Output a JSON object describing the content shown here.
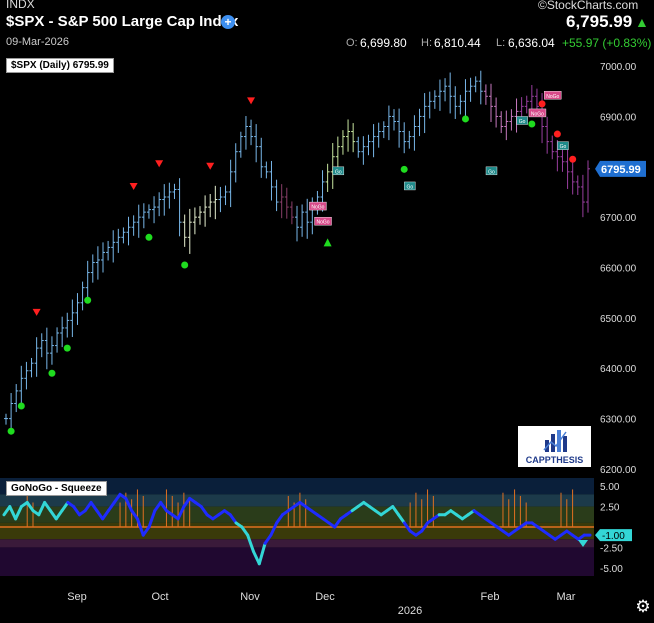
{
  "header": {
    "exchange": "INDX",
    "title": "$SPX - S&P 500 Large Cap Index",
    "date": "09-Mar-2026",
    "brand": "©StockCharts.com",
    "last_price": "6,795.99",
    "ohlc": {
      "open_label": "O:",
      "open": "6,699.80",
      "high_label": "H:",
      "high": "6,810.44",
      "low_label": "L:",
      "low": "6,636.04",
      "change": "+55.97 (+0.83%)"
    }
  },
  "colors": {
    "background": "#000000",
    "up_green": "#33cc33",
    "price_tag": "#1f6fd1",
    "nogo_marker": "#ff1f1f",
    "go_marker": "#1fdc1f",
    "oscillator": "#1e2bff",
    "oscillator_light": "#33d6d6",
    "squeeze": "#e07020"
  },
  "chart_data": [
    {
      "type": "line",
      "title": "$SPX (Daily) 6795.99",
      "price_tag": "6795.99",
      "y_ticks": [
        "7000.00",
        "6900.00",
        "6800.00",
        "6700.00",
        "6600.00",
        "6500.00",
        "6400.00",
        "6300.00",
        "6200.00"
      ],
      "ylim": [
        6190,
        7020
      ],
      "x_labels": [
        "Sep",
        "Oct",
        "Nov",
        "Dec",
        "Feb",
        "Mar"
      ],
      "year_label": "2026",
      "series": [
        {
          "values": [
            6300,
            6330,
            6355,
            6380,
            6395,
            6410,
            6440,
            6455,
            6430,
            6445,
            6470,
            6480,
            6495,
            6510,
            6530,
            6560,
            6590,
            6610,
            6615,
            6630,
            6640,
            6650,
            6660,
            6670,
            6680,
            6690,
            6700,
            6710,
            6715,
            6720,
            6735,
            6740,
            6750,
            6755,
            6690,
            6660,
            6690,
            6700,
            6710,
            6720,
            6730,
            6735,
            6740,
            6750,
            6790,
            6830,
            6860,
            6880,
            6860,
            6840,
            6800,
            6790,
            6760,
            6730,
            6740,
            6720,
            6700,
            6680,
            6710,
            6690,
            6720,
            6740,
            6770,
            6790,
            6820,
            6840,
            6860,
            6870,
            6850,
            6830,
            6840,
            6850,
            6860,
            6870,
            6880,
            6900,
            6890,
            6870,
            6850,
            6860,
            6880,
            6900,
            6920,
            6930,
            6940,
            6950,
            6960,
            6940,
            6920,
            6930,
            6950,
            6960,
            6970,
            6950,
            6940,
            6920,
            6900,
            6880,
            6890,
            6900,
            6910,
            6920,
            6930,
            6940,
            6920,
            6880,
            6850,
            6830,
            6820,
            6810,
            6790,
            6770,
            6760,
            6730,
            6796
          ]
        }
      ],
      "annotations": {
        "nogo_labels": [
          "NoGo",
          "NoGo",
          "NoGo",
          "NoGo"
        ],
        "go_labels": [
          "Go",
          "Go",
          "Go",
          "Go",
          "Go"
        ]
      }
    },
    {
      "type": "area",
      "title": "GoNoGo - Squeeze",
      "y_ticks": [
        "5.00",
        "2.50",
        "-2.50",
        "-5.00"
      ],
      "value_tag": "-1.00",
      "ylim": [
        -6,
        6
      ],
      "series": [
        {
          "values": [
            1.5,
            2.5,
            1.0,
            2.5,
            3.0,
            2.0,
            1.5,
            3.0,
            2.0,
            1.0,
            2.0,
            3.0,
            2.5,
            1.5,
            2.0,
            3.0,
            2.0,
            1.0,
            2.0,
            3.0,
            4.0,
            3.5,
            2.0,
            1.0,
            -1.0,
            0.0,
            2.0,
            3.0,
            2.0,
            1.5,
            1.0,
            2.5,
            3.5,
            3.0,
            2.5,
            1.5,
            1.0,
            1.5,
            2.0,
            1.5,
            0.5,
            0.0,
            -1.0,
            -3.0,
            -4.5,
            -2.0,
            -1.0,
            0.5,
            1.5,
            2.0,
            2.5,
            3.0,
            2.5,
            2.0,
            1.5,
            1.0,
            0.5,
            0.0,
            1.0,
            1.5,
            2.0,
            2.5,
            3.0,
            2.5,
            2.0,
            1.5,
            2.0,
            2.5,
            1.5,
            0.5,
            -0.5,
            -1.0,
            -0.5,
            0.5,
            1.0,
            1.5,
            1.5,
            2.0,
            1.5,
            1.0,
            1.5,
            2.0,
            1.5,
            1.0,
            0.5,
            0.0,
            -0.5,
            -1.0,
            -0.5,
            0.0,
            0.5,
            0.5,
            0.0,
            -0.5,
            -1.0,
            -1.5,
            -1.0,
            -0.5,
            -1.0,
            -1.5,
            -1.0,
            -1.0
          ]
        }
      ]
    }
  ]
}
